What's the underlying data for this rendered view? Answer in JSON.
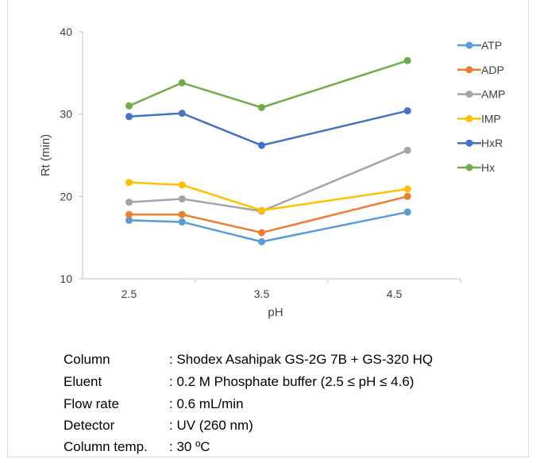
{
  "chart_data": {
    "type": "line",
    "title": "",
    "xlabel": "pH",
    "ylabel": "Rt (min)",
    "xlim": [
      2.0,
      5.0
    ],
    "ylim": [
      10,
      40
    ],
    "x_ticks": [
      "2.5",
      "3.5",
      "4.5"
    ],
    "y_ticks": [
      "10",
      "20",
      "30",
      "40"
    ],
    "x": [
      2.5,
      2.9,
      3.5,
      4.6
    ],
    "legend_position": "right",
    "grid": false,
    "series": [
      {
        "name": "ATP",
        "color": "#5b9bd5",
        "values": [
          17.1,
          16.9,
          14.5,
          18.1
        ]
      },
      {
        "name": "ADP",
        "color": "#ed7d31",
        "values": [
          17.8,
          17.8,
          15.6,
          20.0
        ]
      },
      {
        "name": "AMP",
        "color": "#a5a5a5",
        "values": [
          19.3,
          19.7,
          18.2,
          25.6
        ]
      },
      {
        "name": "IMP",
        "color": "#ffc000",
        "values": [
          21.7,
          21.4,
          18.3,
          20.9
        ]
      },
      {
        "name": "HxR",
        "color": "#4472c4",
        "values": [
          29.7,
          30.1,
          26.2,
          30.4
        ]
      },
      {
        "name": "Hx",
        "color": "#70ad47",
        "values": [
          31.0,
          33.8,
          30.8,
          36.5
        ]
      }
    ]
  },
  "conditions": [
    {
      "label": "Column",
      "value": ": Shodex Asahipak GS-2G 7B + GS-320 HQ"
    },
    {
      "label": "Eluent",
      "value": ": 0.2 M Phosphate buffer  (2.5 ≤ pH ≤ 4.6)"
    },
    {
      "label": "Flow rate",
      "value": ": 0.6 mL/min"
    },
    {
      "label": "Detector",
      "value": ": UV (260 nm)"
    },
    {
      "label": "Column temp.",
      "value": ": 30 ºC"
    }
  ]
}
